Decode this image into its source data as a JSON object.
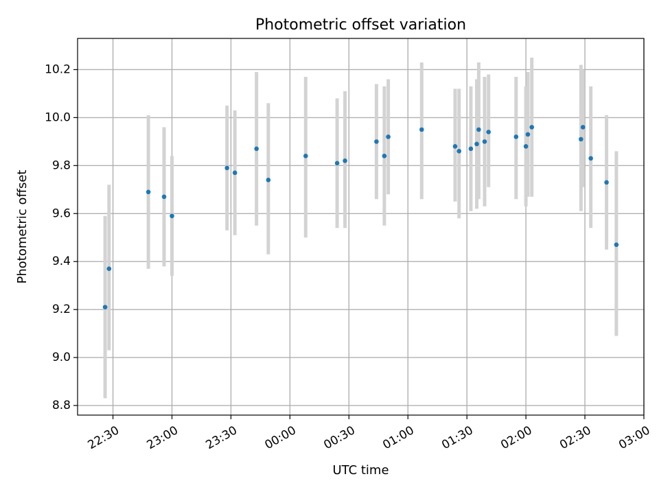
{
  "chart_data": {
    "type": "scatter",
    "title": "Photometric offset variation",
    "xlabel": "UTC time",
    "ylabel": "Photometric offset",
    "x_axis": {
      "kind": "time",
      "day_boundary": "00:00",
      "xlim": [
        "22:12",
        "03:00"
      ],
      "ticks": [
        "22:30",
        "23:00",
        "23:30",
        "00:00",
        "00:30",
        "01:00",
        "01:30",
        "02:00",
        "02:30",
        "03:00"
      ]
    },
    "y_axis": {
      "ylim": [
        8.76,
        10.33
      ],
      "ticks": [
        "8.8",
        "9.0",
        "9.2",
        "9.4",
        "9.6",
        "9.8",
        "10.0",
        "10.2"
      ]
    },
    "grid": true,
    "series": [
      {
        "color": "#1f77b4",
        "errorbar_color": "#d3d3d3",
        "points": [
          {
            "t": "22:26",
            "y": 9.21,
            "lo": 8.83,
            "hi": 9.59
          },
          {
            "t": "22:28",
            "y": 9.37,
            "lo": 9.03,
            "hi": 9.72
          },
          {
            "t": "22:48",
            "y": 9.69,
            "lo": 9.37,
            "hi": 10.01
          },
          {
            "t": "22:56",
            "y": 9.67,
            "lo": 9.38,
            "hi": 9.96
          },
          {
            "t": "23:00",
            "y": 9.59,
            "lo": 9.34,
            "hi": 9.84
          },
          {
            "t": "23:28",
            "y": 9.79,
            "lo": 9.53,
            "hi": 10.05
          },
          {
            "t": "23:32",
            "y": 9.77,
            "lo": 9.51,
            "hi": 10.03
          },
          {
            "t": "23:43",
            "y": 9.87,
            "lo": 9.55,
            "hi": 10.19
          },
          {
            "t": "23:49",
            "y": 9.74,
            "lo": 9.43,
            "hi": 10.06
          },
          {
            "t": "00:08",
            "y": 9.84,
            "lo": 9.5,
            "hi": 10.17
          },
          {
            "t": "00:24",
            "y": 9.81,
            "lo": 9.54,
            "hi": 10.08
          },
          {
            "t": "00:28",
            "y": 9.82,
            "lo": 9.54,
            "hi": 10.11
          },
          {
            "t": "00:44",
            "y": 9.9,
            "lo": 9.66,
            "hi": 10.14
          },
          {
            "t": "00:48",
            "y": 9.84,
            "lo": 9.55,
            "hi": 10.13
          },
          {
            "t": "00:50",
            "y": 9.92,
            "lo": 9.68,
            "hi": 10.16
          },
          {
            "t": "01:07",
            "y": 9.95,
            "lo": 9.66,
            "hi": 10.23
          },
          {
            "t": "01:24",
            "y": 9.88,
            "lo": 9.65,
            "hi": 10.12
          },
          {
            "t": "01:26",
            "y": 9.86,
            "lo": 9.58,
            "hi": 10.12
          },
          {
            "t": "01:32",
            "y": 9.87,
            "lo": 9.61,
            "hi": 10.13
          },
          {
            "t": "01:35",
            "y": 9.89,
            "lo": 9.62,
            "hi": 10.16
          },
          {
            "t": "01:36",
            "y": 9.95,
            "lo": 9.66,
            "hi": 10.23
          },
          {
            "t": "01:39",
            "y": 9.9,
            "lo": 9.63,
            "hi": 10.17
          },
          {
            "t": "01:41",
            "y": 9.94,
            "lo": 9.71,
            "hi": 10.18
          },
          {
            "t": "01:55",
            "y": 9.92,
            "lo": 9.66,
            "hi": 10.17
          },
          {
            "t": "02:00",
            "y": 9.88,
            "lo": 9.63,
            "hi": 10.13
          },
          {
            "t": "02:01",
            "y": 9.93,
            "lo": 9.67,
            "hi": 10.19
          },
          {
            "t": "02:03",
            "y": 9.96,
            "lo": 9.67,
            "hi": 10.25
          },
          {
            "t": "02:28",
            "y": 9.91,
            "lo": 9.61,
            "hi": 10.22
          },
          {
            "t": "02:29",
            "y": 9.96,
            "lo": 9.71,
            "hi": 10.2
          },
          {
            "t": "02:33",
            "y": 9.83,
            "lo": 9.54,
            "hi": 10.13
          },
          {
            "t": "02:41",
            "y": 9.73,
            "lo": 9.45,
            "hi": 10.01
          },
          {
            "t": "02:46",
            "y": 9.47,
            "lo": 9.09,
            "hi": 9.86
          }
        ]
      }
    ]
  }
}
